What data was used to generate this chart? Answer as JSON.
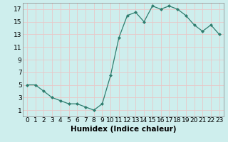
{
  "x": [
    0,
    1,
    2,
    3,
    4,
    5,
    6,
    7,
    8,
    9,
    10,
    11,
    12,
    13,
    14,
    15,
    16,
    17,
    18,
    19,
    20,
    21,
    22,
    23
  ],
  "y": [
    5,
    5,
    4,
    3,
    2.5,
    2,
    2,
    1.5,
    1,
    2,
    6.5,
    12.5,
    16,
    16.5,
    15,
    17.5,
    17,
    17.5,
    17,
    16,
    14.5,
    13.5,
    14.5,
    13
  ],
  "line_color": "#2e7d6e",
  "marker": "D",
  "marker_size": 2.0,
  "bg_color": "#ceeeed",
  "grid_color": "#e8c8c8",
  "xlabel": "Humidex (Indice chaleur)",
  "xlim": [
    -0.5,
    23.5
  ],
  "ylim": [
    0,
    18
  ],
  "yticks": [
    1,
    3,
    5,
    7,
    9,
    11,
    13,
    15,
    17
  ],
  "xticks": [
    0,
    1,
    2,
    3,
    4,
    5,
    6,
    7,
    8,
    9,
    10,
    11,
    12,
    13,
    14,
    15,
    16,
    17,
    18,
    19,
    20,
    21,
    22,
    23
  ],
  "xtick_labels": [
    "0",
    "1",
    "2",
    "3",
    "4",
    "5",
    "6",
    "7",
    "8",
    "9",
    "10",
    "11",
    "12",
    "13",
    "14",
    "15",
    "16",
    "17",
    "18",
    "19",
    "20",
    "21",
    "22",
    "23"
  ],
  "font_size": 6.5,
  "xlabel_fontsize": 7.5
}
